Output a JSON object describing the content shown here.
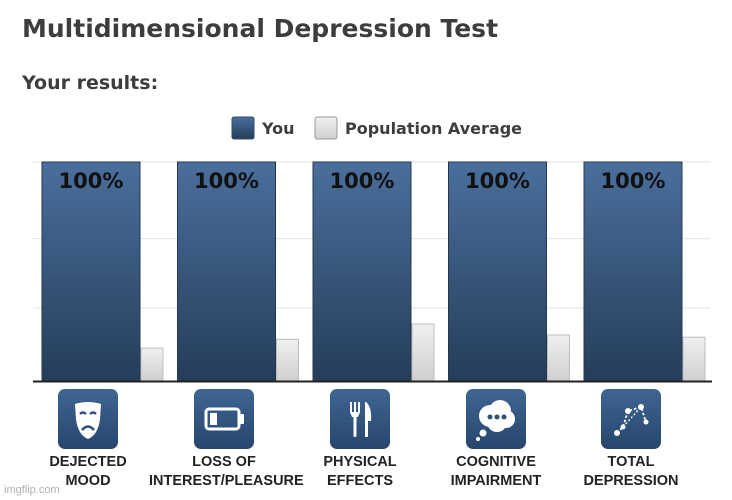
{
  "title": "Multidimensional Depression Test",
  "subtitle": "Your results:",
  "watermark": "imgflip.com",
  "colors": {
    "you_top": "#4a6f9c",
    "you_bottom": "#253d5a",
    "avg_top": "#f0f0f0",
    "avg_bottom": "#cfcfcf",
    "icon_bg": "#2f5279",
    "text": "#3d3d3d"
  },
  "chart_data": {
    "type": "bar",
    "categories": [
      "DEJECTED MOOD",
      "LOSS OF INTEREST/PLEASURE",
      "PHYSICAL EFFECTS",
      "COGNITIVE IMPAIRMENT",
      "TOTAL DEPRESSION"
    ],
    "category_lines": [
      [
        "DEJECTED",
        "MOOD"
      ],
      [
        "LOSS OF",
        "INTEREST/PLEASURE"
      ],
      [
        "PHYSICAL",
        "EFFECTS"
      ],
      [
        "COGNITIVE",
        "IMPAIRMENT"
      ],
      [
        "TOTAL",
        "DEPRESSION"
      ]
    ],
    "series": [
      {
        "name": "You",
        "values": [
          100,
          100,
          100,
          100,
          100
        ]
      },
      {
        "name": "Population Average",
        "values": [
          15,
          19,
          26,
          21,
          20
        ]
      }
    ],
    "data_labels": [
      "100%",
      "100%",
      "100%",
      "100%",
      "100%"
    ],
    "ylim": [
      0,
      100
    ],
    "grid": true,
    "legend": "top-center",
    "icons": [
      "drama-mask-icon",
      "low-battery-icon",
      "fork-knife-icon",
      "thought-bubble-icon",
      "constellation-icon"
    ]
  }
}
